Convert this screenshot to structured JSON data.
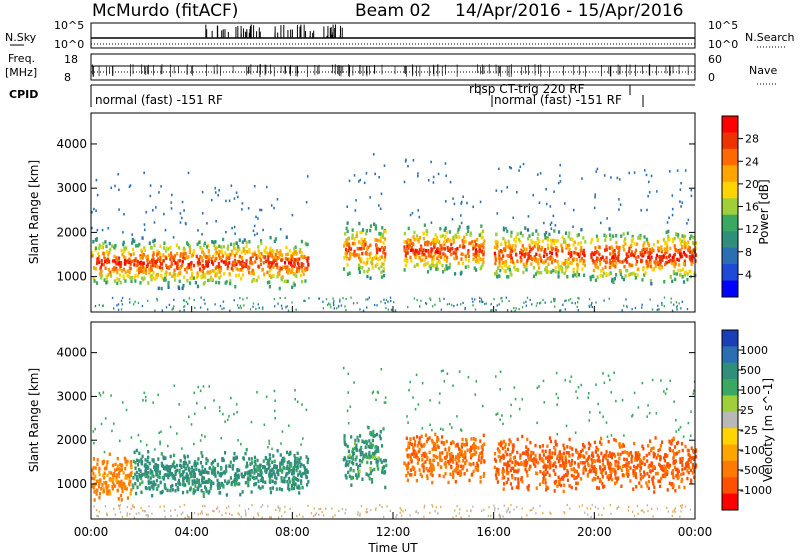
{
  "header": {
    "title": "McMurdo (fitACF)",
    "beam": "Beam 02",
    "dates": "14/Apr/2016 - 15/Apr/2016"
  },
  "status_panel": {
    "nsky_label": "N.Sky",
    "nsky_ticks": [
      "10^5",
      "10^0"
    ],
    "nsearch_label": "N.Search",
    "nsearch_ticks": [
      "10^5",
      "10^0"
    ],
    "freq_label": "Freq.",
    "freq_unit": "[MHz]",
    "freq_ticks": [
      "18",
      "8"
    ],
    "nave_label": "Nave",
    "nave_ticks": [
      "60",
      "0"
    ],
    "cpid_label": "CPID",
    "cpid_segments": [
      "normal (fast) -151 RF",
      "rbsp CT-trig 220 RF",
      "normal (fast) -151 RF"
    ]
  },
  "chart_data": [
    {
      "type": "heatmap",
      "panel": "power",
      "ylabel": "Slant Range [km]",
      "ylim": [
        200,
        4700
      ],
      "yticks": [
        "1000",
        "2000",
        "3000",
        "4000"
      ],
      "xlim_hours": [
        0,
        24
      ],
      "colorbar": {
        "label": "Power [dB]",
        "ticks": [
          "28",
          "24",
          "20",
          "16",
          "12",
          "8",
          "4"
        ],
        "colors": [
          "#ff0000",
          "#ee3300",
          "#ff6a00",
          "#ffa500",
          "#ffd400",
          "#9fcf3a",
          "#3aa860",
          "#2f8f7a",
          "#2c6fb0",
          "#1e4ad6",
          "#0000ff"
        ]
      },
      "echo_bands": [
        {
          "start": 0.0,
          "end": 8.6,
          "lo_km": 700,
          "hi_km": 1900,
          "peak": 26
        },
        {
          "start": 10.0,
          "end": 11.7,
          "lo_km": 900,
          "hi_km": 2300,
          "peak": 24
        },
        {
          "start": 12.4,
          "end": 15.6,
          "lo_km": 1000,
          "hi_km": 2200,
          "peak": 26
        },
        {
          "start": 16.0,
          "end": 19.6,
          "lo_km": 900,
          "hi_km": 2100,
          "peak": 26
        },
        {
          "start": 19.8,
          "end": 24.0,
          "lo_km": 800,
          "hi_km": 2100,
          "peak": 27
        }
      ]
    },
    {
      "type": "heatmap",
      "panel": "velocity",
      "ylabel": "Slant Range [km]",
      "ylim": [
        200,
        4700
      ],
      "yticks": [
        "1000",
        "2000",
        "3000",
        "4000"
      ],
      "xticks": [
        "00:00",
        "04:00",
        "08:00",
        "12:00",
        "16:00",
        "20:00",
        "00:00"
      ],
      "xlabel": "Time UT",
      "xlim_hours": [
        0,
        24
      ],
      "colorbar": {
        "label": "Velocity [m s^-1]",
        "ticks": [
          "1000",
          "500",
          "100",
          "25",
          "-25",
          "-100",
          "-500",
          "-1000"
        ],
        "colors": [
          "#1a3fb5",
          "#2c6fb0",
          "#2f8f7a",
          "#3aa860",
          "#9fcf3a",
          "#b8b8b8",
          "#ffd400",
          "#ffa500",
          "#ff7a00",
          "#ff5000",
          "#ff0000"
        ]
      },
      "echo_bands": [
        {
          "start": 0.0,
          "end": 1.6,
          "lo_km": 600,
          "hi_km": 1700,
          "velocity": -200
        },
        {
          "start": 1.6,
          "end": 8.6,
          "lo_km": 700,
          "hi_km": 1800,
          "velocity": 200
        },
        {
          "start": 10.0,
          "end": 11.7,
          "lo_km": 900,
          "hi_km": 2300,
          "velocity": 150
        },
        {
          "start": 12.4,
          "end": 15.6,
          "lo_km": 1000,
          "hi_km": 2200,
          "velocity": -300
        },
        {
          "start": 16.0,
          "end": 24.0,
          "lo_km": 800,
          "hi_km": 2100,
          "velocity": -400
        }
      ]
    }
  ]
}
